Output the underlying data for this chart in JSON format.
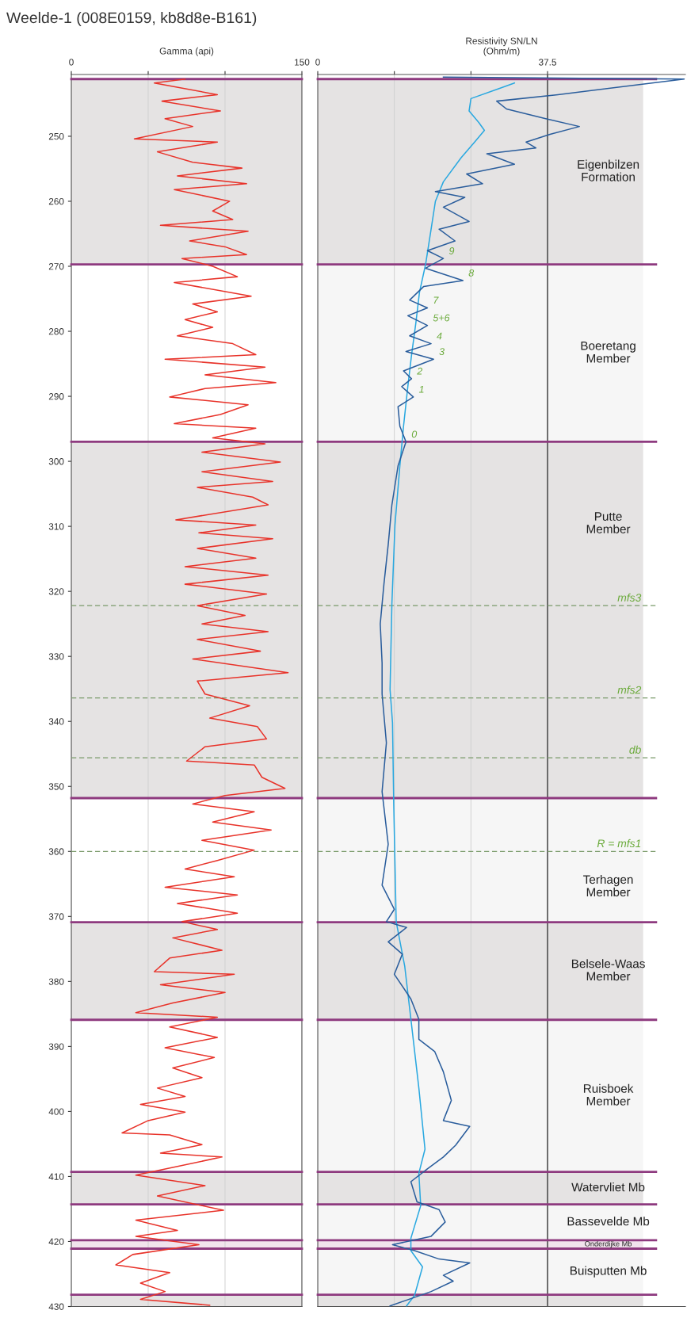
{
  "chart_data": [
    {
      "type": "line",
      "title": "Weelde-1 (008E0159, kb8d8e-B161)",
      "xlabel": "Gamma (api)",
      "orientation": "horizontal",
      "xlim": [
        0,
        150
      ],
      "xticks": [
        0,
        {
          "value": 50,
          "label": null
        },
        {
          "value": 100,
          "label": null
        },
        150
      ],
      "ylim": [
        430,
        240.5
      ],
      "yticks": [
        250,
        260,
        270,
        280,
        290,
        300,
        310,
        320,
        330,
        340,
        350,
        360,
        370,
        380,
        390,
        400,
        410,
        420,
        430
      ],
      "grid": "x",
      "legend": false,
      "marker": "none",
      "series": [
        {
          "color": "#e8332a",
          "x": [
            241.2,
            241.8,
            243.6,
            244.6,
            246.1,
            247.3,
            248.5,
            250.4,
            250.9,
            252.4,
            254.0,
            254.9,
            256.1,
            257.3,
            258.2,
            260.0,
            261.5,
            262.8,
            263.7,
            264.6,
            266.1,
            267.0,
            268.2,
            268.8,
            270.0,
            271.6,
            272.5,
            274.6,
            275.8,
            277.0,
            278.2,
            279.4,
            280.7,
            281.9,
            283.6,
            284.3,
            285.5,
            286.7,
            287.9,
            288.8,
            290.1,
            291.3,
            292.8,
            294.2,
            294.9,
            296.4,
            297.3,
            298.6,
            300.1,
            301.6,
            303.1,
            304.0,
            305.5,
            306.7,
            309.0,
            309.8,
            311.0,
            311.9,
            313.4,
            314.9,
            316.2,
            317.5,
            318.9,
            320.4,
            322.2,
            323.7,
            325.0,
            326.2,
            327.4,
            329.2,
            330.4,
            332.5,
            333.8,
            335.8,
            337.6,
            339.5,
            340.8,
            342.7,
            343.9,
            346.1,
            346.7,
            348.6,
            350.3,
            351.4,
            352.7,
            353.9,
            355.5,
            356.7,
            358.3,
            359.8,
            361.4,
            362.7,
            363.9,
            365.5,
            366.7,
            368.0,
            369.5,
            370.8,
            372.0,
            373.3,
            375.2,
            376.4,
            378.5,
            378.9,
            380.5,
            381.7,
            383.3,
            384.8,
            385.5,
            387.0,
            388.6,
            390.2,
            391.7,
            393.3,
            394.8,
            396.4,
            397.7,
            398.9,
            400.1,
            401.4,
            403.3,
            403.6,
            405.1,
            406.4,
            407.0,
            408.6,
            409.8,
            411.4,
            413.0,
            415.2,
            416.7,
            418.3,
            419.2,
            420.5,
            422.0,
            423.6,
            424.8,
            426.4,
            427.7,
            428.9,
            429.8
          ],
          "values": [
            74,
            54,
            95,
            59,
            97,
            61,
            79,
            41,
            95,
            56,
            79,
            111,
            69,
            114,
            67,
            103,
            92,
            105,
            58,
            115,
            77,
            100,
            114,
            72,
            92,
            108,
            67,
            117,
            79,
            95,
            74,
            92,
            69,
            105,
            120,
            61,
            126,
            87,
            133,
            87,
            64,
            115,
            97,
            67,
            120,
            92,
            126,
            85,
            136,
            85,
            131,
            82,
            118,
            128,
            68,
            120,
            83,
            131,
            82,
            120,
            74,
            128,
            74,
            127,
            82,
            113,
            85,
            128,
            82,
            123,
            79,
            141,
            82,
            87,
            116,
            90,
            121,
            127,
            87,
            75,
            119,
            124,
            139,
            100,
            79,
            119,
            92,
            130,
            85,
            119,
            95,
            74,
            106,
            61,
            108,
            69,
            108,
            72,
            95,
            66,
            98,
            64,
            54,
            106,
            58,
            100,
            66,
            42,
            95,
            64,
            95,
            61,
            93,
            66,
            85,
            56,
            74,
            45,
            74,
            50,
            33,
            64,
            85,
            58,
            98,
            66,
            42,
            87,
            56,
            99,
            42,
            69,
            42,
            83,
            40,
            29,
            64,
            45,
            61,
            45,
            90
          ]
        }
      ],
      "bands": [
        {
          "axis": "y",
          "from": 241.2,
          "to": 269.7,
          "color": "#e5e3e3"
        },
        {
          "axis": "y",
          "from": 297.0,
          "to": 351.8,
          "color": "#e5e3e3"
        },
        {
          "axis": "y",
          "from": 370.9,
          "to": 385.9,
          "color": "#e5e3e3"
        },
        {
          "axis": "y",
          "from": 409.3,
          "to": 414.3,
          "color": "#e5e3e3"
        },
        {
          "axis": "y",
          "from": 419.8,
          "to": 421.1,
          "color": "#f1e3ec"
        },
        {
          "axis": "y",
          "from": 428.2,
          "to": 430,
          "color": "#e5e3e3"
        }
      ],
      "ref_lines": [
        {
          "axis": "y",
          "value": 241.2,
          "color": "#8e3a7f",
          "line_style": "solid"
        },
        {
          "axis": "y",
          "value": 269.7,
          "color": "#8e3a7f",
          "line_style": "solid"
        },
        {
          "axis": "y",
          "value": 297.0,
          "color": "#8e3a7f",
          "line_style": "solid"
        },
        {
          "axis": "y",
          "value": 351.8,
          "color": "#8e3a7f",
          "line_style": "solid"
        },
        {
          "axis": "y",
          "value": 370.9,
          "color": "#8e3a7f",
          "line_style": "solid"
        },
        {
          "axis": "y",
          "value": 385.9,
          "color": "#8e3a7f",
          "line_style": "solid"
        },
        {
          "axis": "y",
          "value": 409.3,
          "color": "#8e3a7f",
          "line_style": "solid"
        },
        {
          "axis": "y",
          "value": 414.3,
          "color": "#8e3a7f",
          "line_style": "solid"
        },
        {
          "axis": "y",
          "value": 419.8,
          "color": "#8e3a7f",
          "line_style": "solid"
        },
        {
          "axis": "y",
          "value": 421.1,
          "color": "#8e3a7f",
          "line_style": "solid"
        },
        {
          "axis": "y",
          "value": 428.2,
          "color": "#8e3a7f",
          "line_style": "solid"
        },
        {
          "axis": "y",
          "value": 322.2,
          "color": "#7a9a6a",
          "line_style": "dashed"
        },
        {
          "axis": "y",
          "value": 336.4,
          "color": "#7a9a6a",
          "line_style": "dashed"
        },
        {
          "axis": "y",
          "value": 345.6,
          "color": "#7a9a6a",
          "line_style": "dashed"
        },
        {
          "axis": "y",
          "value": 360.0,
          "color": "#7a9a6a",
          "line_style": "dashed"
        }
      ]
    },
    {
      "type": "line",
      "xlabel": "Resistivity SN/LN\n(Ohm/m)",
      "orientation": "horizontal",
      "xlim": [
        0,
        60
      ],
      "xticks": [
        0,
        {
          "value": 12.5,
          "label": null
        },
        {
          "value": 25,
          "label": null
        },
        37.5
      ],
      "ylim": [
        430,
        240.5
      ],
      "tick_labels": "x",
      "grid": "x",
      "legend": false,
      "marker": "none",
      "series": [
        {
          "color": "#29a8e0",
          "x": [
            241.8,
            242.7,
            244.2,
            246.1,
            247.9,
            249.1,
            250.9,
            253.3,
            257.0,
            260.0,
            264.3,
            269.7,
            274.0,
            278.8,
            283.7,
            288.5,
            294.6,
            300.7,
            309.8,
            321.9,
            335.1,
            340.2,
            352.7,
            370.8,
            377.7,
            385.8,
            396.4,
            405.8,
            409.5,
            414.5,
            419.5,
            421.4,
            423.9,
            428.3,
            429.9
          ],
          "values": [
            32.1,
            29.5,
            25,
            24.7,
            26.3,
            27.2,
            25.6,
            23.4,
            20.5,
            19.2,
            18.5,
            17.6,
            16.6,
            16,
            15.3,
            14.7,
            14,
            13.4,
            12.6,
            12.1,
            11.8,
            12.2,
            12.4,
            12.8,
            14.2,
            15.2,
            16.5,
            17.5,
            16.5,
            16.8,
            15.2,
            15.2,
            17.1,
            15.8,
            14.5
          ]
        },
        {
          "color": "#2a5d9c",
          "x": [
            240.9,
            241.2,
            243.6,
            244.6,
            245.8,
            247.3,
            248.5,
            249.7,
            250.9,
            251.8,
            252.7,
            254.3,
            255.8,
            257.3,
            258.5,
            259.4,
            260.9,
            263.1,
            264.3,
            266.1,
            267.6,
            268.8,
            270.3,
            272.2,
            273.1,
            275.2,
            276.4,
            277.6,
            279.1,
            280.7,
            281.9,
            283.1,
            284.3,
            286.1,
            287.3,
            288.5,
            290.1,
            291.6,
            294.6,
            297.0,
            300.7,
            306.7,
            312.8,
            318.9,
            325.0,
            331.0,
            335.8,
            343.3,
            350.8,
            358.9,
            365.2,
            368.9,
            370.8,
            371.7,
            373.9,
            375.8,
            378.9,
            382.7,
            385.8,
            388.9,
            390.8,
            393.9,
            398.3,
            401.4,
            402.3,
            405.2,
            407.0,
            408.9,
            410.8,
            413.9,
            415.1,
            417.0,
            419.2,
            420.5,
            421.4,
            422.7,
            423.3,
            425.2,
            426.1,
            427.7,
            429.9
          ],
          "values": [
            20.5,
            59.8,
            39.2,
            29.2,
            30.8,
            37.2,
            42.7,
            37.9,
            34,
            35.6,
            27.6,
            32.1,
            24.3,
            26.9,
            19.2,
            24,
            20.5,
            24.7,
            19.8,
            22.4,
            17.9,
            20.5,
            17.6,
            23.7,
            17.3,
            15,
            17.9,
            14.7,
            17.9,
            15,
            18.5,
            14.4,
            18.9,
            14,
            15.3,
            13.7,
            15.6,
            13.1,
            13.4,
            14.4,
            13.1,
            12.1,
            11.5,
            10.8,
            10.2,
            10.5,
            10.5,
            11.2,
            10.5,
            11.5,
            10.5,
            12.5,
            11.2,
            14.5,
            11.5,
            13.8,
            12.5,
            15.2,
            16.5,
            16.5,
            19.1,
            20.5,
            21.8,
            20.5,
            24.8,
            22.5,
            20.5,
            17.8,
            15.2,
            16.2,
            19.8,
            20.8,
            18.5,
            12.2,
            15.8,
            19.8,
            24.8,
            20.5,
            22.1,
            18.5,
            11.8
          ]
        }
      ],
      "bands": [
        {
          "axis": "y",
          "from": 241.2,
          "to": 269.7,
          "color": "#e5e3e3",
          "label": "Eigenbilzen\nFormation"
        },
        {
          "axis": "y",
          "from": 269.7,
          "to": 297.0,
          "color": "#f6f6f6",
          "label": "Boeretang\nMember"
        },
        {
          "axis": "y",
          "from": 297.0,
          "to": 351.8,
          "color": "#e5e3e3",
          "label": "Putte\nMember"
        },
        {
          "axis": "y",
          "from": 351.8,
          "to": 370.9,
          "color": "#f6f6f6",
          "label": "Terhagen\nMember"
        },
        {
          "axis": "y",
          "from": 370.9,
          "to": 385.9,
          "color": "#e5e3e3",
          "label": "Belsele-Waas\nMember"
        },
        {
          "axis": "y",
          "from": 385.9,
          "to": 409.3,
          "color": "#f6f6f6",
          "label": "Ruisboek\nMember"
        },
        {
          "axis": "y",
          "from": 409.3,
          "to": 414.3,
          "color": "#e5e3e3",
          "label": "Watervliet Mb"
        },
        {
          "axis": "y",
          "from": 414.3,
          "to": 419.8,
          "color": "#f6f6f6",
          "label": "Bassevelde Mb"
        },
        {
          "axis": "y",
          "from": 419.8,
          "to": 421.1,
          "color": "#f1e3ec",
          "label": "Onderdijke Mb"
        },
        {
          "axis": "y",
          "from": 421.1,
          "to": 428.2,
          "color": "#f6f6f6",
          "label": "Buisputten Mb"
        },
        {
          "axis": "y",
          "from": 428.2,
          "to": 430,
          "color": "#e5e3e3"
        }
      ],
      "ref_lines": [
        {
          "axis": "x",
          "value": 37.5,
          "color": "#555555",
          "line_style": "solid"
        },
        {
          "axis": "y",
          "value": 241.2,
          "color": "#8e3a7f",
          "line_style": "solid"
        },
        {
          "axis": "y",
          "value": 269.7,
          "color": "#8e3a7f",
          "line_style": "solid"
        },
        {
          "axis": "y",
          "value": 297.0,
          "color": "#8e3a7f",
          "line_style": "solid"
        },
        {
          "axis": "y",
          "value": 351.8,
          "color": "#8e3a7f",
          "line_style": "solid"
        },
        {
          "axis": "y",
          "value": 370.9,
          "color": "#8e3a7f",
          "line_style": "solid"
        },
        {
          "axis": "y",
          "value": 385.9,
          "color": "#8e3a7f",
          "line_style": "solid"
        },
        {
          "axis": "y",
          "value": 409.3,
          "color": "#8e3a7f",
          "line_style": "solid"
        },
        {
          "axis": "y",
          "value": 414.3,
          "color": "#8e3a7f",
          "line_style": "solid"
        },
        {
          "axis": "y",
          "value": 419.8,
          "color": "#8e3a7f",
          "line_style": "solid"
        },
        {
          "axis": "y",
          "value": 421.1,
          "color": "#8e3a7f",
          "line_style": "solid"
        },
        {
          "axis": "y",
          "value": 428.2,
          "color": "#8e3a7f",
          "line_style": "solid"
        },
        {
          "axis": "y",
          "value": 322.2,
          "color": "#7a9a6a",
          "line_style": "dashed",
          "label": "mfs3"
        },
        {
          "axis": "y",
          "value": 336.4,
          "color": "#7a9a6a",
          "line_style": "dashed",
          "label": "mfs2"
        },
        {
          "axis": "y",
          "value": 345.6,
          "color": "#7a9a6a",
          "line_style": "dashed",
          "label": "db"
        },
        {
          "axis": "y",
          "value": 360.0,
          "color": "#7a9a6a",
          "line_style": "dashed",
          "label": "R = mfs1"
        }
      ],
      "annotations": [
        {
          "text": "9",
          "x": 20.5,
          "y": 268.8
        },
        {
          "text": "8",
          "x": 23.7,
          "y": 272.2
        },
        {
          "text": "7",
          "x": 17.9,
          "y": 276.4
        },
        {
          "text": "5+6",
          "x": 17.9,
          "y": 279.1
        },
        {
          "text": "4",
          "x": 18.5,
          "y": 281.9
        },
        {
          "text": "3",
          "x": 18.9,
          "y": 284.3
        },
        {
          "text": "2",
          "x": 15.3,
          "y": 287.3
        },
        {
          "text": "1",
          "x": 15.6,
          "y": 290.1
        },
        {
          "text": "0",
          "x": 14.4,
          "y": 297.0
        }
      ]
    }
  ]
}
